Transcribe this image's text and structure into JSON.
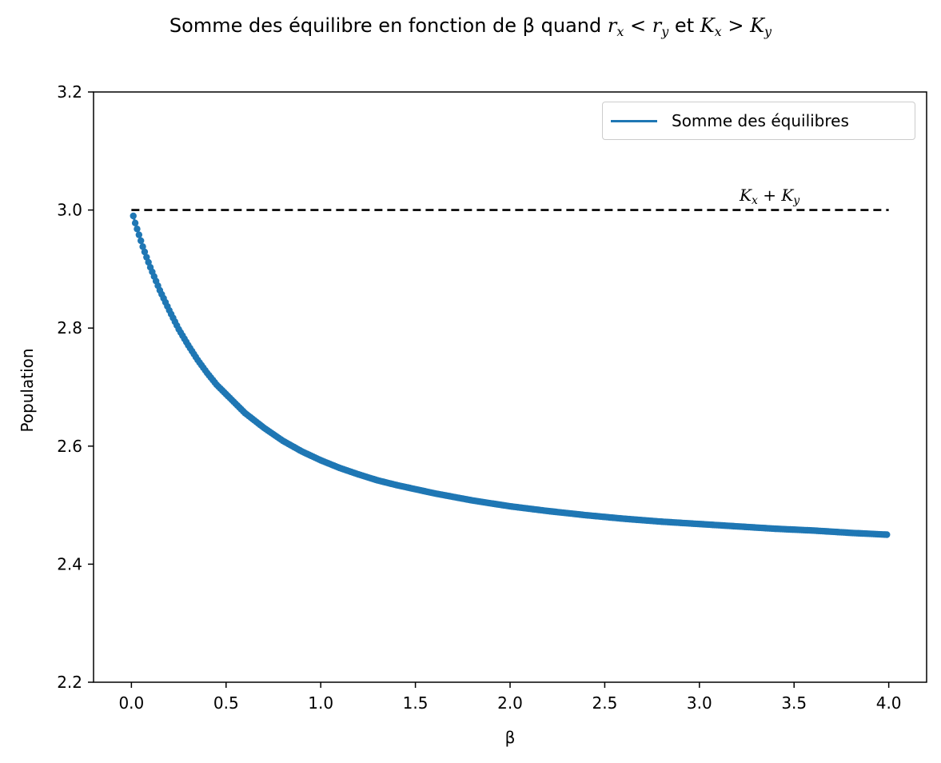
{
  "chart_data": {
    "type": "line",
    "title": {
      "text_prefix": "Somme des équilibre en fonction de β quand ",
      "math_1": {
        "r": "r",
        "sub_x": "x",
        "lt": "<",
        "sub_y": "y"
      },
      "et": " et ",
      "math_2": {
        "K": "K",
        "sub_x": "x",
        "gt": ">",
        "sub_y": "y"
      }
    },
    "xlabel": "β",
    "ylabel": "Population",
    "xlim": [
      -0.2,
      4.2
    ],
    "ylim": [
      2.2,
      3.2
    ],
    "x_ticks": [
      "0.0",
      "0.5",
      "1.0",
      "1.5",
      "2.0",
      "2.5",
      "3.0",
      "3.5",
      "4.0"
    ],
    "y_ticks": [
      "2.2",
      "2.4",
      "2.6",
      "2.8",
      "3.0",
      "3.2"
    ],
    "grid": false,
    "legend_position": "top-right",
    "series": [
      {
        "name": "Somme des équilibres",
        "color": "#1f77b4",
        "style": "solid line with dot markers",
        "x": [
          0.01,
          0.02,
          0.04,
          0.06,
          0.08,
          0.1,
          0.15,
          0.2,
          0.25,
          0.3,
          0.35,
          0.4,
          0.45,
          0.5,
          0.6,
          0.7,
          0.8,
          0.9,
          1.0,
          1.1,
          1.2,
          1.3,
          1.4,
          1.5,
          1.6,
          1.8,
          2.0,
          2.2,
          2.4,
          2.6,
          2.8,
          3.0,
          3.2,
          3.4,
          3.6,
          3.8,
          3.99
        ],
        "y": [
          2.99,
          2.978,
          2.958,
          2.938,
          2.92,
          2.903,
          2.864,
          2.83,
          2.798,
          2.771,
          2.746,
          2.724,
          2.704,
          2.688,
          2.656,
          2.631,
          2.609,
          2.591,
          2.576,
          2.563,
          2.552,
          2.542,
          2.534,
          2.527,
          2.52,
          2.508,
          2.498,
          2.49,
          2.483,
          2.477,
          2.472,
          2.468,
          2.464,
          2.46,
          2.457,
          2.453,
          2.45
        ]
      },
      {
        "name": "",
        "color": "#000000",
        "style": "dashed",
        "x": [
          0.0,
          4.0
        ],
        "y": [
          3.0,
          3.0
        ]
      }
    ],
    "annotations": [
      {
        "K": "K",
        "sub_x": "x",
        "plus": "+",
        "sub_y": "y",
        "x": 3.2,
        "y": 3.005
      }
    ]
  }
}
